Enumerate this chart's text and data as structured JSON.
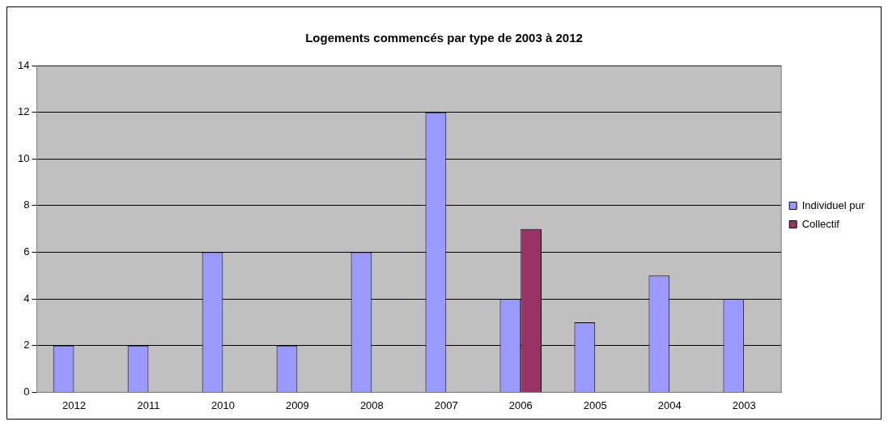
{
  "chart_data": {
    "type": "bar",
    "title": "Logements commencés par type de 2003 à 2012",
    "categories": [
      "2012",
      "2011",
      "2010",
      "2009",
      "2008",
      "2007",
      "2006",
      "2005",
      "2004",
      "2003"
    ],
    "series": [
      {
        "name": "Individuel pur",
        "color": "#9999ff",
        "values": [
          2,
          2,
          6,
          2,
          6,
          12,
          4,
          3,
          5,
          4
        ]
      },
      {
        "name": "Collectif",
        "color": "#993366",
        "values": [
          null,
          null,
          null,
          null,
          null,
          null,
          7,
          null,
          null,
          null
        ]
      }
    ],
    "ylim": [
      0,
      14
    ],
    "yticks": [
      0,
      2,
      4,
      6,
      8,
      10,
      12,
      14
    ],
    "grid": "y",
    "legend": "right"
  }
}
